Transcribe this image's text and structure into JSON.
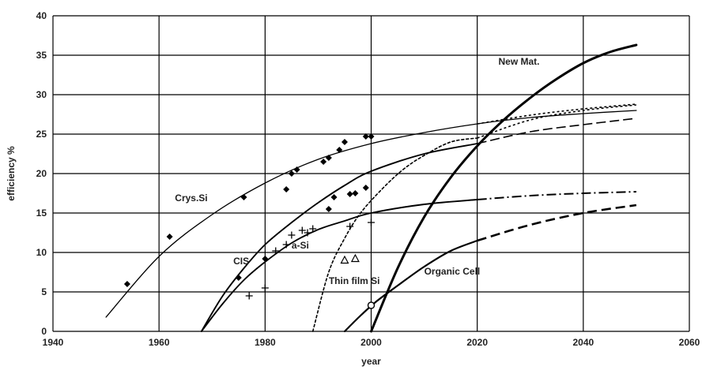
{
  "chart_data": {
    "type": "line",
    "title": "",
    "xlabel": "year",
    "ylabel": "efficiency %",
    "xlim": [
      1940,
      2060
    ],
    "ylim": [
      0,
      40
    ],
    "xticks": [
      "1940",
      "1960",
      "1980",
      "2000",
      "2020",
      "2040",
      "2060"
    ],
    "yticks": [
      "0",
      "5",
      "10",
      "15",
      "20",
      "25",
      "30",
      "35",
      "40"
    ],
    "grid": true,
    "legend": "none",
    "series": [
      {
        "name": "Crys.Si",
        "fit_curve": [
          [
            1950,
            1.8
          ],
          [
            1960,
            9.5
          ],
          [
            1970,
            14.8
          ],
          [
            1980,
            18.8
          ],
          [
            1990,
            21.8
          ],
          [
            2000,
            23.8
          ],
          [
            2010,
            25.2
          ],
          [
            2020,
            26.3
          ],
          [
            2030,
            27.1
          ],
          [
            2040,
            27.6
          ],
          [
            2050,
            28.0
          ]
        ],
        "projection_curve": [
          [
            2020,
            26.3
          ],
          [
            2030,
            27.4
          ],
          [
            2040,
            28.2
          ],
          [
            2050,
            28.8
          ]
        ],
        "points": [
          [
            1954,
            6
          ],
          [
            1962,
            12
          ],
          [
            1976,
            17
          ],
          [
            1984,
            18
          ],
          [
            1985,
            20
          ],
          [
            1986,
            20.5
          ],
          [
            1991,
            21.5
          ],
          [
            1992,
            22
          ],
          [
            1994,
            23
          ],
          [
            1995,
            24
          ],
          [
            1999,
            24.7
          ],
          [
            2000,
            24.7
          ]
        ]
      },
      {
        "name": "CIS",
        "fit_curve": [
          [
            1968,
            0
          ],
          [
            1972,
            4.5
          ],
          [
            1976,
            8.0
          ],
          [
            1980,
            11.0
          ],
          [
            1985,
            13.8
          ],
          [
            1990,
            16.3
          ],
          [
            1995,
            18.5
          ],
          [
            2000,
            20.3
          ],
          [
            2010,
            22.5
          ],
          [
            2020,
            23.8
          ]
        ],
        "projection_curve": [
          [
            2020,
            23.8
          ],
          [
            2030,
            25.3
          ],
          [
            2040,
            26.2
          ],
          [
            2050,
            27.0
          ]
        ],
        "points": [
          [
            1975,
            6.8
          ],
          [
            1980,
            9.2
          ],
          [
            1992,
            15.5
          ],
          [
            1993,
            17
          ],
          [
            1996,
            17.4
          ],
          [
            1997,
            17.5
          ],
          [
            1999,
            18.2
          ]
        ]
      },
      {
        "name": "a-Si",
        "fit_curve": [
          [
            1968,
            0
          ],
          [
            1972,
            3.5
          ],
          [
            1976,
            6.5
          ],
          [
            1980,
            8.8
          ],
          [
            1985,
            11.2
          ],
          [
            1990,
            12.9
          ],
          [
            1995,
            14.0
          ],
          [
            2000,
            15.0
          ],
          [
            2010,
            16.1
          ],
          [
            2020,
            16.7
          ]
        ],
        "projection_curve": [
          [
            2020,
            16.7
          ],
          [
            2030,
            17.2
          ],
          [
            2040,
            17.5
          ],
          [
            2050,
            17.7
          ]
        ],
        "points": [
          [
            1977,
            4.5
          ],
          [
            1980,
            5.5
          ],
          [
            1982,
            10.2
          ],
          [
            1984,
            11
          ],
          [
            1985,
            12.2
          ],
          [
            1987,
            12.8
          ],
          [
            1988,
            12.5
          ],
          [
            1989,
            13
          ],
          [
            1996,
            13.3
          ],
          [
            2000,
            13.8
          ]
        ]
      },
      {
        "name": "Thin film Si",
        "fit_curve": [
          [
            1989,
            0
          ],
          [
            1992,
            7.5
          ],
          [
            1995,
            11.8
          ],
          [
            1998,
            15.0
          ],
          [
            2002,
            18.0
          ],
          [
            2006,
            20.5
          ],
          [
            2010,
            22.3
          ],
          [
            2015,
            24.0
          ],
          [
            2020,
            24.5
          ]
        ],
        "projection_curve": [
          [
            2020,
            24.5
          ],
          [
            2030,
            26.8
          ],
          [
            2040,
            28.0
          ],
          [
            2050,
            28.7
          ]
        ],
        "points": [
          [
            1995,
            9
          ],
          [
            1997,
            9.2
          ]
        ]
      },
      {
        "name": "Organic Cell",
        "fit_curve": [
          [
            1995,
            0
          ],
          [
            1998,
            2.0
          ],
          [
            2001,
            3.8
          ],
          [
            2005,
            5.8
          ],
          [
            2010,
            8.2
          ],
          [
            2015,
            10.2
          ],
          [
            2020,
            11.5
          ]
        ],
        "projection_curve": [
          [
            2020,
            11.5
          ],
          [
            2030,
            13.5
          ],
          [
            2040,
            15.0
          ],
          [
            2050,
            16.0
          ]
        ],
        "points": [
          [
            2000,
            3.3
          ]
        ]
      },
      {
        "name": "New Mat.",
        "fit_curve": [
          [
            2000,
            0
          ],
          [
            2005,
            8.0
          ],
          [
            2010,
            14.5
          ],
          [
            2015,
            19.5
          ],
          [
            2020,
            23.5
          ],
          [
            2025,
            26.8
          ],
          [
            2030,
            29.6
          ],
          [
            2035,
            32.0
          ],
          [
            2040,
            34.0
          ],
          [
            2045,
            35.4
          ],
          [
            2050,
            36.3
          ]
        ],
        "projection_curve": [],
        "points": []
      }
    ],
    "labels": [
      {
        "text": "Crys.Si",
        "x": 1963,
        "y": 16.5
      },
      {
        "text": "CIS",
        "x": 1974,
        "y": 8.5
      },
      {
        "text": "a-Si",
        "x": 1985,
        "y": 10.5
      },
      {
        "text": "Thin film Si",
        "x": 1992,
        "y": 6
      },
      {
        "text": "Organic Cell",
        "x": 2010,
        "y": 7.2
      },
      {
        "text": "New Mat.",
        "x": 2024,
        "y": 33.8
      }
    ]
  }
}
